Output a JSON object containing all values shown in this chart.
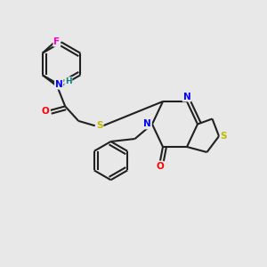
{
  "background_color": "#e8e8e8",
  "atom_colors": {
    "C": "#202020",
    "N": "#0000ff",
    "O": "#ff0000",
    "S": "#bbbb00",
    "F": "#ff00cc",
    "H": "#008080"
  },
  "figsize": [
    3.0,
    3.0
  ],
  "dpi": 100
}
